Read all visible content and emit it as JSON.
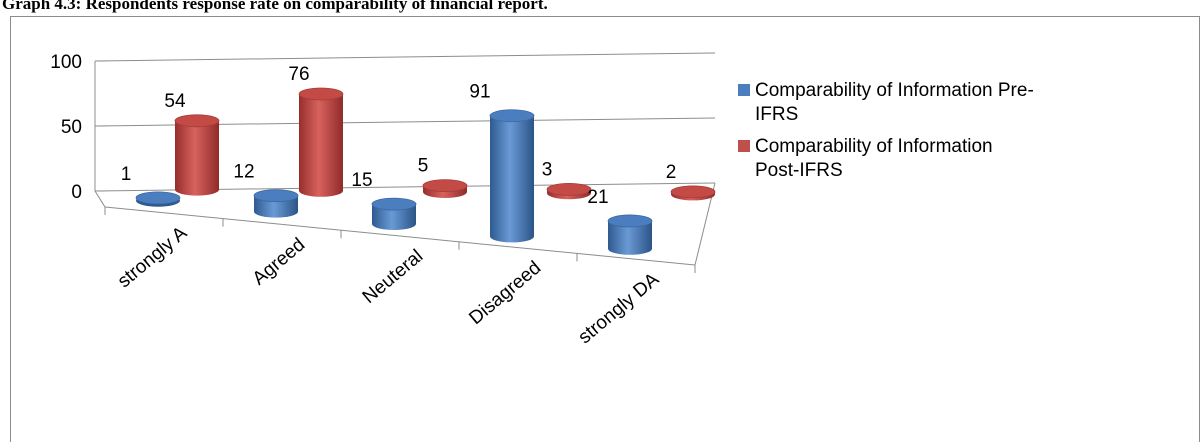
{
  "caption": "Graph 4.3: Respondents response rate on comparability of financial report.",
  "chart_data": {
    "type": "bar",
    "style": "3d-cylinder",
    "categories": [
      "strongly A",
      "Agreed",
      "Neuteral",
      "Disagreed",
      "strongly DA"
    ],
    "series": [
      {
        "name_lines": [
          "Comparability of Information Pre-",
          "IFRS"
        ],
        "name": "Comparability of Information Pre-IFRS",
        "color": "#4a7ebf",
        "values": [
          1,
          12,
          15,
          91,
          21
        ]
      },
      {
        "name_lines": [
          "Comparability of Information",
          "Post-IFRS"
        ],
        "name": "Comparability of Information Post-IFRS",
        "color": "#c0504d",
        "values": [
          54,
          76,
          5,
          3,
          2
        ]
      }
    ],
    "yticks": [
      "0",
      "50",
      "100"
    ],
    "ylim": [
      0,
      100
    ],
    "legend": "right",
    "grid": true
  }
}
